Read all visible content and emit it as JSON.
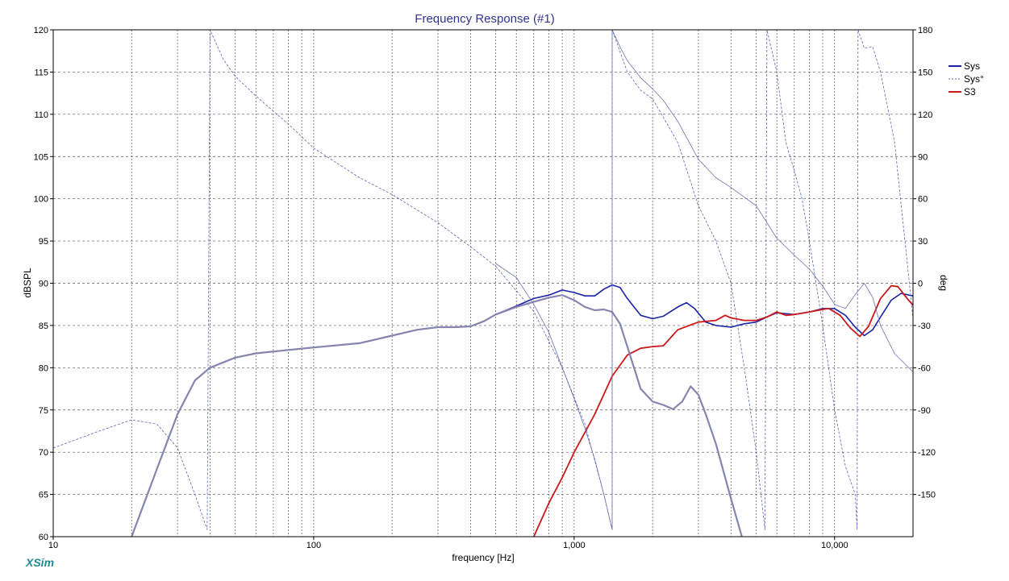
{
  "app": {
    "brand": "XSim"
  },
  "chart_data": {
    "type": "line",
    "title": "Frequency Response (#1)",
    "xlabel": "frequency [Hz]",
    "ylabel": "dBSPL",
    "y2label": "deg",
    "xscale": "log",
    "xlim": [
      10,
      20000
    ],
    "ylim": [
      60,
      120
    ],
    "y2lim": [
      -180,
      180
    ],
    "grid": true,
    "legend_position": "top-right",
    "xticks": [
      {
        "v": 10,
        "label": "10"
      },
      {
        "v": 100,
        "label": "100"
      },
      {
        "v": 1000,
        "label": "1,000"
      },
      {
        "v": 10000,
        "label": "10,000"
      }
    ],
    "yticks": [
      60,
      65,
      70,
      75,
      80,
      85,
      90,
      95,
      100,
      105,
      110,
      115,
      120
    ],
    "y2ticks": [
      {
        "v": 180,
        "label": "180"
      },
      {
        "v": 150,
        "label": "150"
      },
      {
        "v": 120,
        "label": "120"
      },
      {
        "v": 90,
        "label": "90"
      },
      {
        "v": 60,
        "label": "60"
      },
      {
        "v": 30,
        "label": "30"
      },
      {
        "v": 0,
        "label": "0"
      },
      {
        "v": -30,
        "label": "-30"
      },
      {
        "v": -60,
        "label": "-60"
      },
      {
        "v": -90,
        "label": "-90"
      },
      {
        "v": -120,
        "label": "-120"
      },
      {
        "v": -150,
        "label": "-150"
      }
    ],
    "series": [
      {
        "name": "Sys",
        "axis": "left",
        "color": "#1a23a8",
        "style": "solid",
        "width": 1.6,
        "points": [
          [
            20,
            60
          ],
          [
            25,
            68
          ],
          [
            30,
            74.5
          ],
          [
            35,
            78.5
          ],
          [
            40,
            80
          ],
          [
            50,
            81.2
          ],
          [
            60,
            81.7
          ],
          [
            80,
            82.1
          ],
          [
            100,
            82.4
          ],
          [
            150,
            82.9
          ],
          [
            200,
            83.8
          ],
          [
            250,
            84.5
          ],
          [
            300,
            84.8
          ],
          [
            350,
            84.8
          ],
          [
            400,
            84.9
          ],
          [
            450,
            85.5
          ],
          [
            500,
            86.3
          ],
          [
            600,
            87.3
          ],
          [
            700,
            88.2
          ],
          [
            800,
            88.6
          ],
          [
            900,
            89.2
          ],
          [
            1000,
            88.9
          ],
          [
            1100,
            88.5
          ],
          [
            1200,
            88.5
          ],
          [
            1300,
            89.3
          ],
          [
            1400,
            89.8
          ],
          [
            1500,
            89.5
          ],
          [
            1600,
            88.2
          ],
          [
            1800,
            86.2
          ],
          [
            2000,
            85.8
          ],
          [
            2200,
            86.1
          ],
          [
            2500,
            87.2
          ],
          [
            2700,
            87.7
          ],
          [
            2900,
            87.0
          ],
          [
            3200,
            85.4
          ],
          [
            3500,
            85.0
          ],
          [
            4000,
            84.8
          ],
          [
            4500,
            85.2
          ],
          [
            5000,
            85.4
          ],
          [
            5500,
            86.0
          ],
          [
            6000,
            86.5
          ],
          [
            7000,
            86.3
          ],
          [
            8000,
            86.6
          ],
          [
            9000,
            87.0
          ],
          [
            10000,
            87.0
          ],
          [
            11000,
            86.2
          ],
          [
            12000,
            84.8
          ],
          [
            13000,
            83.8
          ],
          [
            14000,
            84.5
          ],
          [
            15000,
            86.0
          ],
          [
            16500,
            88.0
          ],
          [
            18000,
            88.8
          ],
          [
            20000,
            88.5
          ]
        ]
      },
      {
        "name": "Sys°",
        "axis": "right",
        "color": "#5a64b4",
        "style": "dashed",
        "width": 0.8,
        "points": [
          [
            10,
            -117
          ],
          [
            15,
            -105
          ],
          [
            20,
            -97
          ],
          [
            25,
            -100
          ],
          [
            30,
            -117
          ],
          [
            35,
            -150
          ],
          [
            39,
            -175
          ],
          [
            40,
            180
          ],
          [
            45,
            159
          ],
          [
            50,
            147
          ],
          [
            60,
            133
          ],
          [
            80,
            113
          ],
          [
            100,
            96
          ],
          [
            150,
            75
          ],
          [
            200,
            63
          ],
          [
            300,
            43
          ],
          [
            400,
            26
          ],
          [
            500,
            12
          ],
          [
            700,
            -20
          ],
          [
            900,
            -60
          ],
          [
            1100,
            -100
          ],
          [
            1300,
            -150
          ],
          [
            1400,
            -175
          ],
          [
            1400,
            180
          ],
          [
            1600,
            150
          ],
          [
            1800,
            137
          ],
          [
            2000,
            131
          ],
          [
            2500,
            100
          ],
          [
            3000,
            55
          ],
          [
            3500,
            30
          ],
          [
            4000,
            0
          ],
          [
            4500,
            -60
          ],
          [
            5000,
            -120
          ],
          [
            5400,
            -175
          ],
          [
            5500,
            180
          ],
          [
            6000,
            150
          ],
          [
            6500,
            100
          ],
          [
            7000,
            80
          ],
          [
            7500,
            60
          ],
          [
            8000,
            30
          ],
          [
            9000,
            -30
          ],
          [
            10000,
            -90
          ],
          [
            11000,
            -130
          ],
          [
            12000,
            -150
          ],
          [
            12200,
            -175
          ],
          [
            12300,
            180
          ],
          [
            13000,
            167
          ],
          [
            14000,
            168
          ],
          [
            15000,
            150
          ],
          [
            17000,
            100
          ],
          [
            20000,
            -25
          ]
        ]
      },
      {
        "name": "S3",
        "axis": "left",
        "color": "#cc1818",
        "style": "solid",
        "width": 1.8,
        "points": [
          [
            700,
            60
          ],
          [
            800,
            64
          ],
          [
            900,
            67
          ],
          [
            1000,
            70
          ],
          [
            1200,
            74.5
          ],
          [
            1400,
            79
          ],
          [
            1600,
            81.5
          ],
          [
            1800,
            82.3
          ],
          [
            2000,
            82.5
          ],
          [
            2200,
            82.6
          ],
          [
            2500,
            84.5
          ],
          [
            3000,
            85.4
          ],
          [
            3500,
            85.6
          ],
          [
            3800,
            86.2
          ],
          [
            4000,
            85.9
          ],
          [
            4500,
            85.6
          ],
          [
            5000,
            85.6
          ],
          [
            5500,
            86.0
          ],
          [
            6000,
            86.6
          ],
          [
            6500,
            86.2
          ],
          [
            7000,
            86.3
          ],
          [
            8000,
            86.6
          ],
          [
            9000,
            86.9
          ],
          [
            9500,
            87.0
          ],
          [
            10500,
            86.2
          ],
          [
            11500,
            84.7
          ],
          [
            12500,
            83.7
          ],
          [
            13500,
            84.9
          ],
          [
            15000,
            88.2
          ],
          [
            16500,
            89.7
          ],
          [
            17500,
            89.6
          ],
          [
            19000,
            88.2
          ],
          [
            20000,
            87.4
          ]
        ]
      },
      {
        "name": "",
        "axis": "left",
        "color": "#8585b0",
        "style": "solid",
        "width": 2.2,
        "points": [
          [
            20,
            60
          ],
          [
            25,
            68
          ],
          [
            30,
            74.5
          ],
          [
            35,
            78.5
          ],
          [
            40,
            80
          ],
          [
            50,
            81.2
          ],
          [
            60,
            81.7
          ],
          [
            80,
            82.1
          ],
          [
            100,
            82.4
          ],
          [
            150,
            82.9
          ],
          [
            200,
            83.8
          ],
          [
            250,
            84.5
          ],
          [
            300,
            84.8
          ],
          [
            350,
            84.8
          ],
          [
            400,
            84.9
          ],
          [
            450,
            85.5
          ],
          [
            500,
            86.3
          ],
          [
            600,
            87.2
          ],
          [
            700,
            87.8
          ],
          [
            800,
            88.3
          ],
          [
            900,
            88.6
          ],
          [
            1000,
            88.0
          ],
          [
            1100,
            87.2
          ],
          [
            1200,
            86.8
          ],
          [
            1300,
            86.9
          ],
          [
            1400,
            86.6
          ],
          [
            1500,
            85.2
          ],
          [
            1600,
            82.5
          ],
          [
            1800,
            77.5
          ],
          [
            2000,
            76.0
          ],
          [
            2200,
            75.6
          ],
          [
            2400,
            75.1
          ],
          [
            2600,
            76.0
          ],
          [
            2800,
            77.8
          ],
          [
            3000,
            76.8
          ],
          [
            3200,
            74.5
          ],
          [
            3500,
            71.0
          ],
          [
            4000,
            64.5
          ],
          [
            4500,
            59.0
          ]
        ]
      },
      {
        "name": "",
        "axis": "right",
        "color": "#6e72b4",
        "style": "solid",
        "width": 0.8,
        "points": [
          [
            500,
            14
          ],
          [
            600,
            4
          ],
          [
            700,
            -15
          ],
          [
            800,
            -35
          ],
          [
            900,
            -60
          ],
          [
            1000,
            -82
          ],
          [
            1100,
            -103
          ],
          [
            1200,
            -125
          ],
          [
            1300,
            -150
          ],
          [
            1400,
            -175
          ],
          [
            1400,
            180
          ],
          [
            1500,
            168
          ],
          [
            1600,
            158
          ],
          [
            1800,
            146
          ],
          [
            2000,
            138
          ],
          [
            2200,
            130
          ],
          [
            2500,
            115
          ],
          [
            3000,
            88
          ],
          [
            3500,
            75
          ],
          [
            4000,
            68
          ],
          [
            5000,
            55
          ],
          [
            6000,
            32
          ],
          [
            7000,
            20
          ],
          [
            8000,
            10
          ],
          [
            9000,
            -2
          ],
          [
            10000,
            -15
          ],
          [
            11000,
            -18
          ],
          [
            12000,
            -8
          ],
          [
            13000,
            0
          ],
          [
            14000,
            -10
          ],
          [
            15000,
            -30
          ],
          [
            17000,
            -50
          ],
          [
            20000,
            -63
          ]
        ]
      }
    ]
  }
}
